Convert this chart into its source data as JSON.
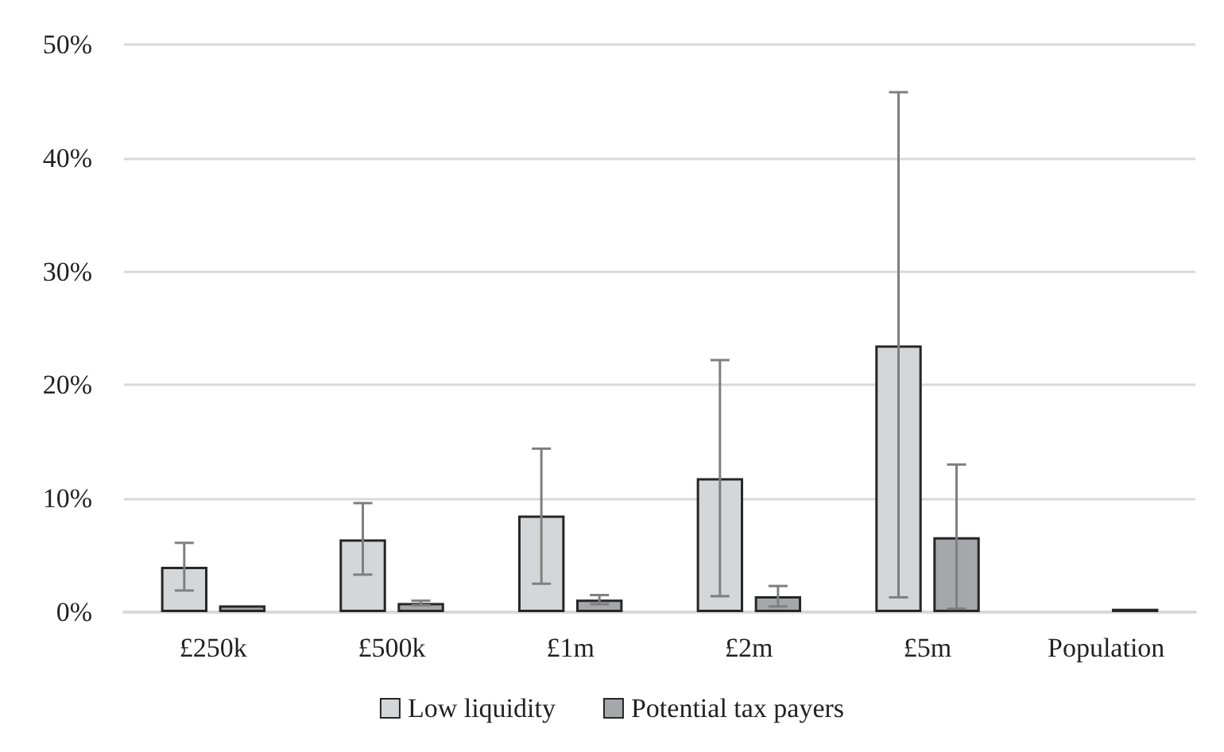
{
  "chart_data": {
    "type": "bar",
    "categories": [
      "£250k",
      "£500k",
      "£1m",
      "£2m",
      "£5m",
      "Population"
    ],
    "series": [
      {
        "name": "Low liquidity",
        "color": "#d5d6d8",
        "values": [
          4.0,
          6.4,
          8.5,
          11.8,
          23.5,
          null
        ],
        "errors": [
          [
            1.9,
            6.1
          ],
          [
            3.3,
            9.6
          ],
          [
            2.5,
            14.4
          ],
          [
            1.4,
            22.2
          ],
          [
            1.3,
            45.8
          ],
          null
        ]
      },
      {
        "name": "Potential tax payers",
        "color": "#a6a7aa",
        "values": [
          0.6,
          0.8,
          1.1,
          1.4,
          6.6,
          0.3
        ],
        "errors": [
          null,
          [
            0.6,
            1.0
          ],
          [
            0.7,
            1.5
          ],
          [
            0.5,
            2.3
          ],
          [
            0.3,
            13.0
          ],
          null
        ]
      }
    ],
    "ylim": [
      0,
      50
    ],
    "yticks": [
      {
        "value": 0,
        "label": "0%"
      },
      {
        "value": 10,
        "label": "10%"
      },
      {
        "value": 20,
        "label": "20%"
      },
      {
        "value": 30,
        "label": "30%"
      },
      {
        "value": 40,
        "label": "40%"
      },
      {
        "value": 50,
        "label": "50%"
      }
    ],
    "grid": "y",
    "legend": "bottom"
  }
}
